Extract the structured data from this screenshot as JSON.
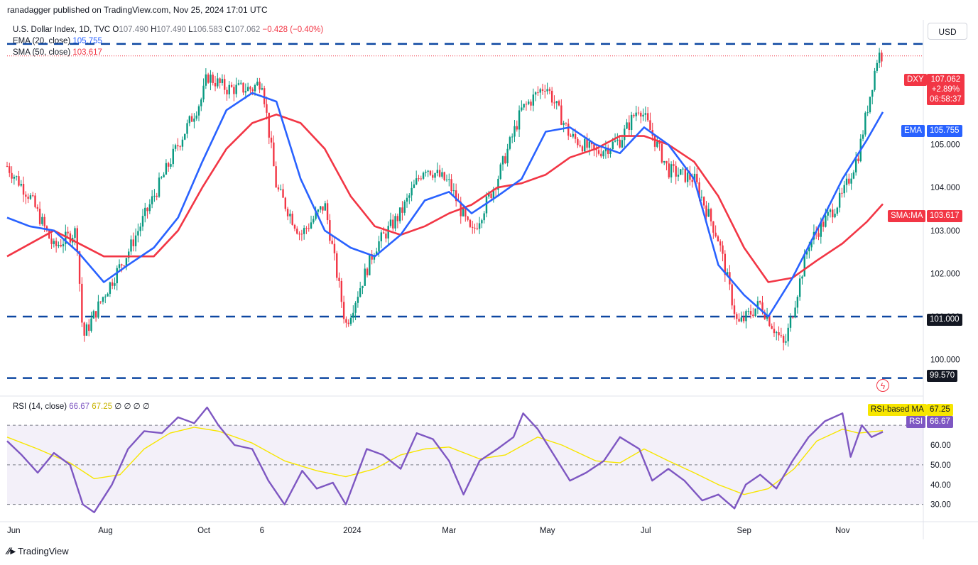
{
  "header": {
    "published": "ranadagger published on TradingView.com, Nov 25, 2024 17:01 UTC"
  },
  "legend": {
    "symbol": "U.S. Dollar Index, 1D, TVC",
    "o_label": "O",
    "o": "107.490",
    "h_label": "H",
    "h": "107.490",
    "l_label": "L",
    "l": "106.583",
    "c_label": "C",
    "c": "107.062",
    "change": "−0.428 (−0.40%)",
    "ema_label": "EMA (20, close)",
    "ema_value": "105.755",
    "sma_label": "SMA (50, close)",
    "sma_value": "103.617",
    "rsi_label": "RSI (14, close)",
    "rsi_value": "66.67",
    "rsi_ma_value": "67.25",
    "rsi_extras": "∅ ∅ ∅ ∅"
  },
  "currency_button": "USD",
  "price_tags": {
    "dxy_label": "DXY",
    "dxy_price": "107.062",
    "dxy_change": "+2.89%",
    "dxy_timer": "06:58:37",
    "ema_tag": "EMA",
    "ema_value": "105.755",
    "sma_tag": "SMA:MA",
    "sma_value": "103.617",
    "level_101": "101.000",
    "level_99": "99.570"
  },
  "rsi_tags": {
    "ma_label": "RSI-based MA",
    "ma_value": "67.25",
    "rsi_label": "RSI",
    "rsi_value": "66.67"
  },
  "branding": "TradingView",
  "chart_data": {
    "type": "line",
    "title": "U.S. Dollar Index, 1D, TVC",
    "price_axis_ticks": [
      "100.000",
      "101.000",
      "102.000",
      "103.000",
      "104.000",
      "105.000",
      "106.000"
    ],
    "ylim": [
      99.2,
      107.9
    ],
    "horizontal_levels": [
      107.34,
      101.0,
      99.57
    ],
    "x_tick_labels": [
      "Jun",
      "Aug",
      "Oct",
      "6",
      "2024",
      "Mar",
      "May",
      "Jul",
      "Sep",
      "Nov"
    ],
    "series": [
      {
        "name": "DXY",
        "color": "#089981",
        "x": [
          "Jun 1",
          "Jun 15",
          "Jun 30",
          "Jul 14",
          "Jul 18",
          "Jul 31",
          "Aug 15",
          "Aug 31",
          "Sep 15",
          "Sep 30",
          "Oct 3",
          "Oct 15",
          "Oct 31",
          "Nov 6",
          "Nov 15",
          "Nov 30",
          "Dec 15",
          "Dec 28",
          "Jan 15",
          "Jan 31",
          "Feb 15",
          "Mar 1",
          "Mar 15",
          "Mar 31",
          "Apr 15",
          "Apr 30",
          "May 15",
          "May 31",
          "Jun 15",
          "Jun 27",
          "Jul 15",
          "Jul 31",
          "Aug 15",
          "Aug 27",
          "Sep 10",
          "Sep 25",
          "Oct 10",
          "Oct 31",
          "Nov 10",
          "Nov 22",
          "Nov 25"
        ],
        "values": [
          104.5,
          103.8,
          102.6,
          103.0,
          100.5,
          101.5,
          102.5,
          103.8,
          105.0,
          106.1,
          106.6,
          106.3,
          106.3,
          106.5,
          104.0,
          102.9,
          103.6,
          100.8,
          102.6,
          103.4,
          104.5,
          104.1,
          102.9,
          104.2,
          105.8,
          106.4,
          105.2,
          104.8,
          105.1,
          105.9,
          104.4,
          104.2,
          102.8,
          100.8,
          101.3,
          100.3,
          102.7,
          103.8,
          104.8,
          107.1,
          107.06
        ]
      },
      {
        "name": "EMA (20, close)",
        "color": "#2962ff",
        "x": [
          "Jun 1",
          "Jun 15",
          "Jun 30",
          "Jul 15",
          "Jul 31",
          "Aug 15",
          "Aug 31",
          "Sep 15",
          "Sep 30",
          "Oct 15",
          "Oct 31",
          "Nov 15",
          "Nov 30",
          "Dec 15",
          "Dec 31",
          "Jan 15",
          "Jan 31",
          "Feb 15",
          "Mar 1",
          "Mar 15",
          "Mar 31",
          "Apr 15",
          "Apr 30",
          "May 15",
          "May 31",
          "Jun 15",
          "Jun 30",
          "Jul 15",
          "Jul 31",
          "Aug 15",
          "Aug 31",
          "Sep 15",
          "Sep 30",
          "Oct 15",
          "Oct 31",
          "Nov 15",
          "Nov 25"
        ],
        "values": [
          103.3,
          103.1,
          103.0,
          102.5,
          101.8,
          102.2,
          102.6,
          103.3,
          104.6,
          105.8,
          106.2,
          106.0,
          104.2,
          103.0,
          102.6,
          102.4,
          102.9,
          103.7,
          103.9,
          103.4,
          103.8,
          104.2,
          105.3,
          105.4,
          105.0,
          104.8,
          105.4,
          105.0,
          104.2,
          102.2,
          101.5,
          101.0,
          101.9,
          103.0,
          104.2,
          105.1,
          105.755
        ]
      },
      {
        "name": "SMA (50, close)",
        "color": "#f23645",
        "x": [
          "Jun 1",
          "Jun 30",
          "Jul 31",
          "Aug 31",
          "Sep 15",
          "Sep 30",
          "Oct 15",
          "Oct 31",
          "Nov 15",
          "Nov 30",
          "Dec 15",
          "Dec 31",
          "Jan 15",
          "Jan 31",
          "Feb 15",
          "Mar 1",
          "Mar 15",
          "Mar 31",
          "Apr 15",
          "Apr 30",
          "May 15",
          "May 31",
          "Jun 15",
          "Jun 30",
          "Jul 15",
          "Jul 31",
          "Aug 15",
          "Aug 31",
          "Sep 15",
          "Sep 30",
          "Oct 15",
          "Oct 31",
          "Nov 15",
          "Nov 25"
        ],
        "values": [
          102.4,
          103.0,
          102.4,
          102.4,
          103.0,
          104.0,
          104.9,
          105.5,
          105.7,
          105.5,
          104.9,
          103.8,
          103.1,
          102.9,
          103.1,
          103.4,
          103.6,
          104.0,
          104.1,
          104.3,
          104.7,
          104.9,
          105.2,
          105.2,
          105.0,
          104.6,
          103.8,
          102.6,
          101.8,
          101.9,
          102.3,
          102.7,
          103.2,
          103.617
        ]
      }
    ],
    "rsi": {
      "ylim": [
        22,
        84
      ],
      "ticks": [
        "30.00",
        "40.00",
        "50.00",
        "60.00"
      ],
      "bands": [
        30,
        50,
        70
      ],
      "series": [
        {
          "name": "RSI (14, close)",
          "color": "#7e57c2",
          "x": [
            "Jun 1",
            "Jun 10",
            "Jun 20",
            "Jun 30",
            "Jul 10",
            "Jul 18",
            "Jul 25",
            "Aug 5",
            "Aug 15",
            "Aug 25",
            "Sep 5",
            "Sep 15",
            "Sep 25",
            "Oct 3",
            "Oct 10",
            "Oct 20",
            "Oct 31",
            "Nov 10",
            "Nov 20",
            "Dec 1",
            "Dec 10",
            "Dec 20",
            "Dec 28",
            "Jan 10",
            "Jan 20",
            "Jan 31",
            "Feb 10",
            "Feb 20",
            "Mar 1",
            "Mar 10",
            "Mar 20",
            "Mar 31",
            "Apr 10",
            "Apr 16",
            "Apr 25",
            "May 5",
            "May 15",
            "May 25",
            "Jun 5",
            "Jun 15",
            "Jun 27",
            "Jul 5",
            "Jul 15",
            "Jul 25",
            "Aug 5",
            "Aug 15",
            "Aug 25",
            "Sep 1",
            "Sep 10",
            "Sep 20",
            "Sep 30",
            "Oct 10",
            "Oct 20",
            "Oct 31",
            "Nov 5",
            "Nov 12",
            "Nov 18",
            "Nov 25"
          ],
          "values": [
            62,
            55,
            46,
            56,
            50,
            30,
            26,
            40,
            58,
            67,
            66,
            74,
            71,
            79,
            70,
            60,
            58,
            42,
            30,
            47,
            38,
            41,
            30,
            58,
            55,
            48,
            66,
            63,
            52,
            35,
            52,
            58,
            64,
            76,
            68,
            55,
            42,
            46,
            52,
            64,
            58,
            42,
            48,
            42,
            32,
            35,
            28,
            40,
            45,
            38,
            52,
            64,
            72,
            76,
            54,
            70,
            64,
            66.67
          ]
        },
        {
          "name": "RSI-based MA",
          "color": "#f7e600",
          "x": [
            "Jun 1",
            "Jun 20",
            "Jul 10",
            "Jul 25",
            "Aug 10",
            "Aug 25",
            "Sep 10",
            "Sep 25",
            "Oct 10",
            "Oct 31",
            "Nov 20",
            "Dec 10",
            "Dec 28",
            "Jan 15",
            "Jan 31",
            "Feb 15",
            "Mar 1",
            "Mar 20",
            "Apr 5",
            "Apr 25",
            "May 10",
            "May 31",
            "Jun 15",
            "Jun 30",
            "Jul 15",
            "Jul 31",
            "Aug 15",
            "Aug 31",
            "Sep 15",
            "Oct 1",
            "Oct 15",
            "Oct 31",
            "Nov 10",
            "Nov 25"
          ],
          "values": [
            64,
            58,
            51,
            43,
            45,
            58,
            66,
            69,
            67,
            61,
            52,
            47,
            44,
            48,
            55,
            58,
            59,
            53,
            55,
            64,
            60,
            52,
            51,
            58,
            52,
            46,
            40,
            35,
            38,
            48,
            62,
            68,
            66,
            67.25
          ]
        }
      ]
    }
  }
}
